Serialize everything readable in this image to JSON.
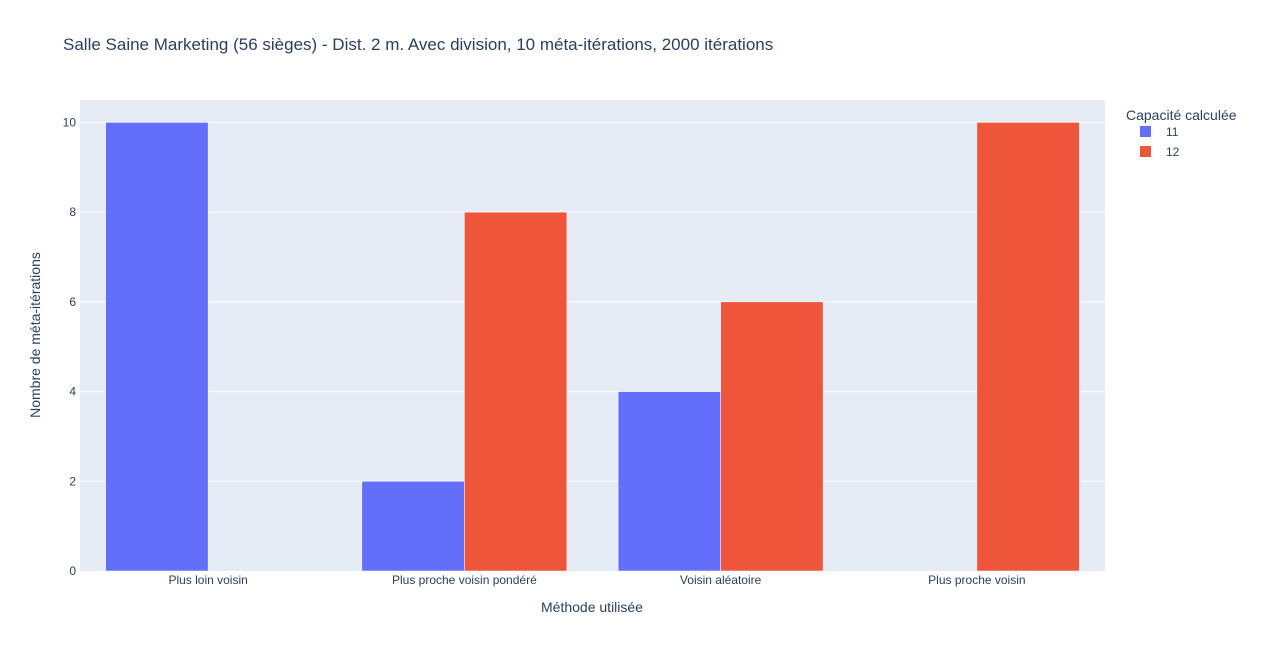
{
  "chart_data": {
    "type": "bar",
    "title": "Salle Saine Marketing (56 sièges) - Dist. 2 m. Avec division, 10 méta-itérations, 2000 itérations",
    "xlabel": "Méthode utilisée",
    "ylabel": "Nombre de méta-itérations",
    "categories": [
      "Plus loin voisin",
      "Plus proche voisin pondéré",
      "Voisin aléatoire",
      "Plus proche voisin"
    ],
    "ylim": [
      0,
      10.5
    ],
    "yticks": [
      0,
      2,
      4,
      6,
      8,
      10
    ],
    "grid": true,
    "legend_title": "Capacité calculée",
    "legend_position": "top-right",
    "barmode": "group",
    "series": [
      {
        "name": "11",
        "color": "#636efa",
        "values": [
          10,
          2,
          4,
          0
        ]
      },
      {
        "name": "12",
        "color": "#ef553b",
        "values": [
          0,
          8,
          6,
          10
        ]
      }
    ],
    "plot_bgcolor": "#e5ecf6"
  }
}
